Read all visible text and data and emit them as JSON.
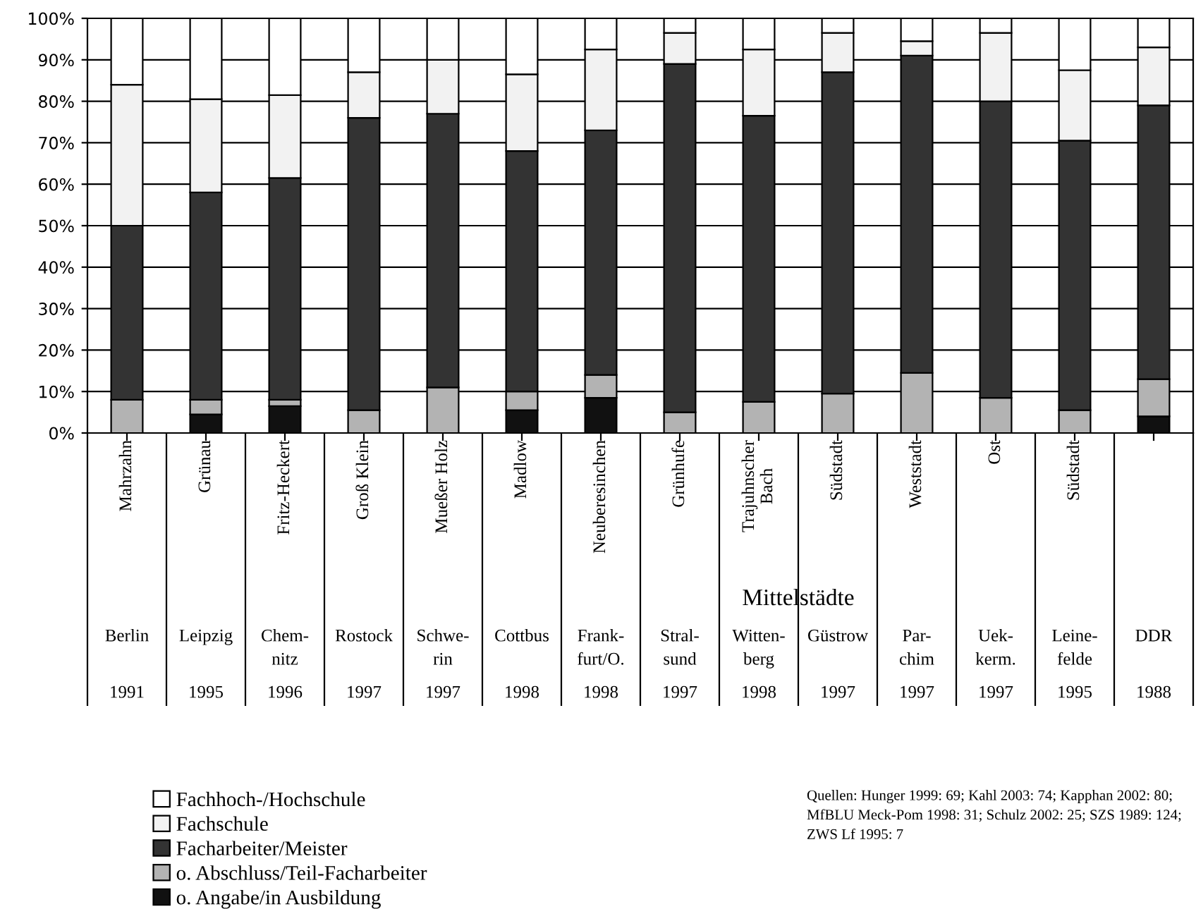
{
  "chart_data": {
    "type": "bar",
    "stacked": true,
    "categories": [
      "Mahrzahn\nBerlin\n1991",
      "Grünau\nLeipzig\n1995",
      "Fritz-Heckert\nChem-nitz\n1996",
      "Groß Klein\nRostock\n1997",
      "Mueßer Holz\nSchwe-rin\n1997",
      "Madlow\nCottbus\n1998",
      "Neuberesinchen\nFrank-furt/O.\n1998",
      "Grünhufe\nStral-sund\n1997",
      "Trajuhnscher Bach\nWitten-berg\n1998",
      "Südstadt\nGüstrow\n1997",
      "Weststadt\nPar-chim\n1997",
      "Ost\nUek-kerm.\n1997",
      "Südstadt\nLeine-felde\n1995",
      "\nDDR\n1988"
    ],
    "series": [
      {
        "name": "o. Angabe/in Ausbildung",
        "color": "#111111",
        "values": [
          0,
          4.5,
          6.5,
          0,
          0,
          5.5,
          8.5,
          0,
          0,
          0,
          0,
          0,
          0,
          4
        ]
      },
      {
        "name": "o. Abschluss/Teil-Facharbeiter",
        "color": "#b3b3b3",
        "values": [
          8,
          3.5,
          1.5,
          5.5,
          11,
          4.5,
          5.5,
          5,
          7.5,
          9.5,
          14.5,
          8.5,
          5.5,
          9
        ]
      },
      {
        "name": "Facharbeiter/Meister",
        "color": "#333333",
        "values": [
          42,
          50,
          53.5,
          70.5,
          66,
          58,
          59,
          84,
          69,
          77.5,
          76.5,
          71.5,
          65,
          66
        ]
      },
      {
        "name": "Fachschule",
        "color": "#f2f2f2",
        "values": [
          34,
          22.5,
          20,
          11,
          13,
          18.5,
          19.5,
          7.5,
          16,
          9.5,
          3.5,
          16.5,
          17,
          14
        ]
      },
      {
        "name": "Fachhoch-/Hochschule",
        "color": "#ffffff",
        "values": [
          16,
          19.5,
          18.5,
          13,
          10,
          13.5,
          7.5,
          3.5,
          7.5,
          3.5,
          5.5,
          3.5,
          12.5,
          7
        ]
      }
    ],
    "ylim": [
      0,
      100
    ],
    "yticks": [
      {
        "value": 0,
        "label": "0%"
      },
      {
        "value": 10,
        "label": "10%"
      },
      {
        "value": 20,
        "label": "20%"
      },
      {
        "value": 30,
        "label": "30%"
      },
      {
        "value": 40,
        "label": "40%"
      },
      {
        "value": 50,
        "label": "50%"
      },
      {
        "value": 60,
        "label": "60%"
      },
      {
        "value": 70,
        "label": "70%"
      },
      {
        "value": 80,
        "label": "80%"
      },
      {
        "value": 90,
        "label": "90%"
      },
      {
        "value": 100,
        "label": "100%"
      }
    ],
    "grid": "y",
    "legend": "bottom",
    "annotations": [
      "Mittelstädte",
      "Quellen: Hunger 1999: 69; Kahl 2003: 74; Kapphan 2002: 80; MfBLU Meck-Pom 1998: 31; Schulz 2002: 25; SZS 1989: 124; ZWS Lf 1995: 7"
    ]
  }
}
